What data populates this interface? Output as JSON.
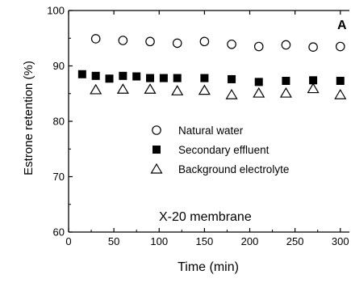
{
  "chart_data": {
    "type": "scatter",
    "panel_label": "A",
    "annotation": "X-20 membrane",
    "xlabel": "Time (min)",
    "ylabel": "Estrone retention (%)",
    "xlim": [
      0,
      310
    ],
    "ylim": [
      60,
      100
    ],
    "x_ticks": [
      0,
      50,
      100,
      150,
      200,
      250,
      300
    ],
    "y_ticks": [
      60,
      70,
      80,
      90,
      100
    ],
    "grid": false,
    "legend_position": "center-left",
    "series": [
      {
        "name": "Natural water",
        "marker": "open-circle",
        "x": [
          30,
          60,
          90,
          120,
          150,
          180,
          210,
          240,
          270,
          300
        ],
        "y": [
          94.9,
          94.6,
          94.4,
          94.1,
          94.4,
          93.9,
          93.5,
          93.8,
          93.4,
          93.5
        ]
      },
      {
        "name": "Secondary effluent",
        "marker": "filled-square",
        "x": [
          15,
          30,
          45,
          60,
          75,
          90,
          105,
          120,
          150,
          180,
          210,
          240,
          270,
          300
        ],
        "y": [
          88.5,
          88.2,
          87.7,
          88.2,
          88.1,
          87.8,
          87.8,
          87.8,
          87.8,
          87.6,
          87.1,
          87.3,
          87.4,
          87.3
        ]
      },
      {
        "name": "Background electrolyte",
        "marker": "open-triangle",
        "x": [
          30,
          60,
          90,
          120,
          150,
          180,
          210,
          240,
          270,
          300
        ],
        "y": [
          85.7,
          85.8,
          85.8,
          85.5,
          85.6,
          84.8,
          85.1,
          85.1,
          85.9,
          84.8
        ]
      }
    ]
  }
}
